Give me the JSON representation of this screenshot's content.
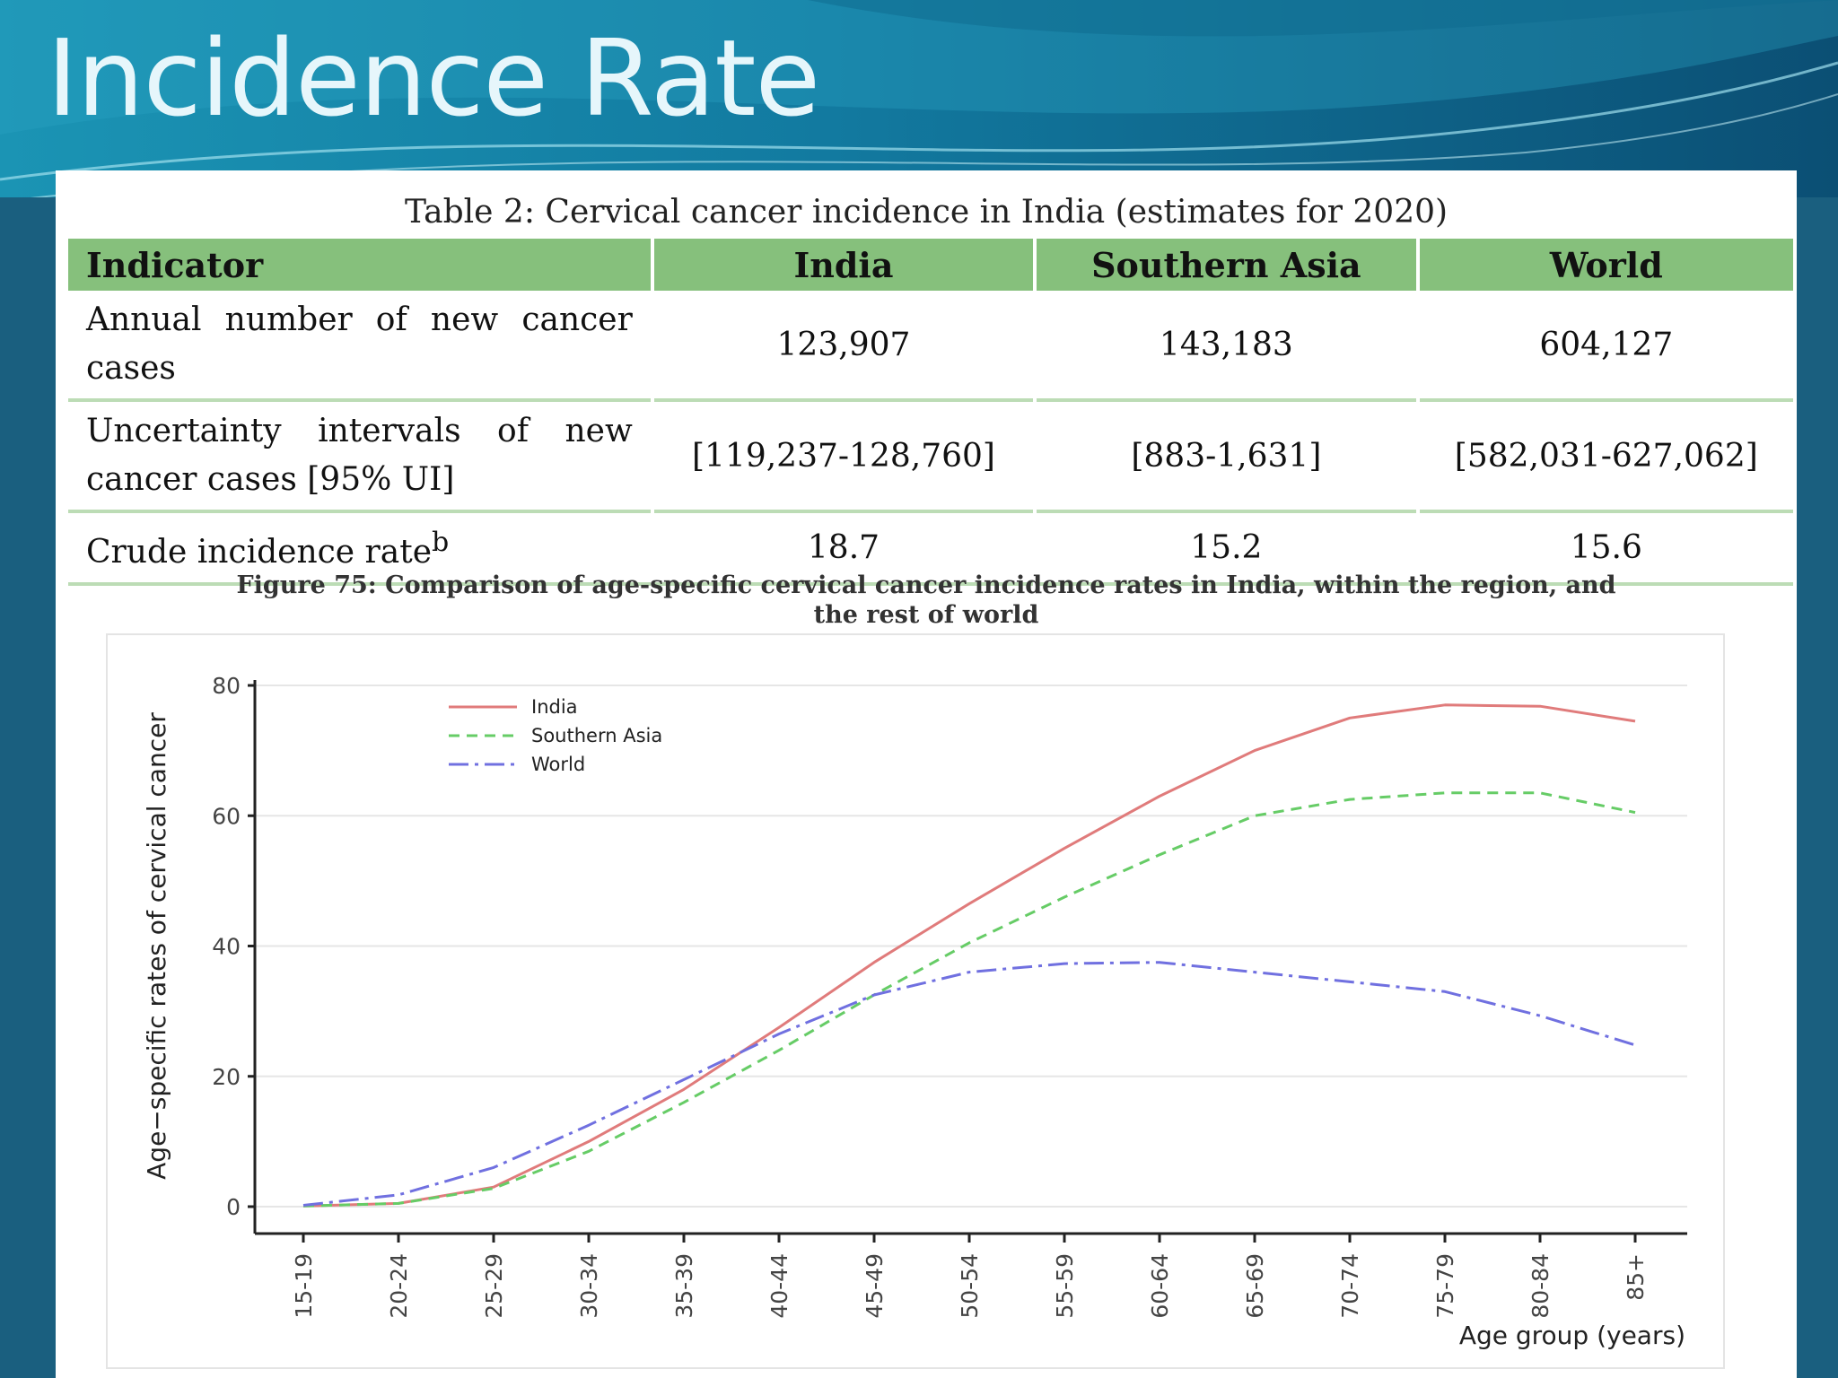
{
  "slide": {
    "title": "Incidence Rate"
  },
  "table": {
    "caption": "Table 2: Cervical cancer incidence in India (estimates for 2020)",
    "headers": [
      "Indicator",
      "India",
      "Southern Asia",
      "World"
    ],
    "rows": [
      {
        "indicator": "Annual number of new cancer cases",
        "superscript": "",
        "india": "123,907",
        "southern_asia": "143,183",
        "world": "604,127"
      },
      {
        "indicator": "Uncertainty intervals of new cancer cases [95% UI]",
        "superscript": "",
        "india": "[119,237-128,760]",
        "southern_asia": "[883-1,631]",
        "world": "[582,031-627,062]"
      },
      {
        "indicator": "Crude incidence rate",
        "superscript": "b",
        "india": "18.7",
        "southern_asia": "15.2",
        "world": "15.6"
      }
    ]
  },
  "figure": {
    "caption_line1": "Figure 75: Comparison of age-specific cervical cancer incidence rates in India, within the region, and",
    "caption_line2": "the rest of world"
  },
  "chart_data": {
    "type": "line",
    "title": "",
    "xlabel": "Age group (years)",
    "ylabel": "Age−specific rates of cervical cancer",
    "categories": [
      "15-19",
      "20-24",
      "25-29",
      "30-34",
      "35-39",
      "40-44",
      "45-49",
      "50-54",
      "55-59",
      "60-64",
      "65-69",
      "70-74",
      "75-79",
      "80-84",
      "85+"
    ],
    "ylim": [
      0,
      80
    ],
    "yticks": [
      0,
      20,
      40,
      60,
      80
    ],
    "grid": true,
    "legend_position": "top-left",
    "series": [
      {
        "name": "India",
        "color": "#e07b7b",
        "dash": "solid",
        "values": [
          0.1,
          0.5,
          3,
          10,
          18,
          27.5,
          37.5,
          46.5,
          55,
          63,
          70,
          75,
          77,
          76.8,
          74.5
        ]
      },
      {
        "name": "Southern Asia",
        "color": "#66cc66",
        "dash": "dashed",
        "values": [
          0.1,
          0.5,
          2.8,
          8.5,
          16,
          24,
          32.5,
          40.5,
          47.5,
          54,
          60,
          62.5,
          63.5,
          63.5,
          60.5
        ]
      },
      {
        "name": "World",
        "color": "#7070e0",
        "dash": "dashdot",
        "values": [
          0.2,
          1.8,
          6,
          12.5,
          19.5,
          26.5,
          32.5,
          36,
          37.3,
          37.5,
          36,
          34.5,
          33,
          29.3,
          24.8
        ]
      }
    ]
  }
}
